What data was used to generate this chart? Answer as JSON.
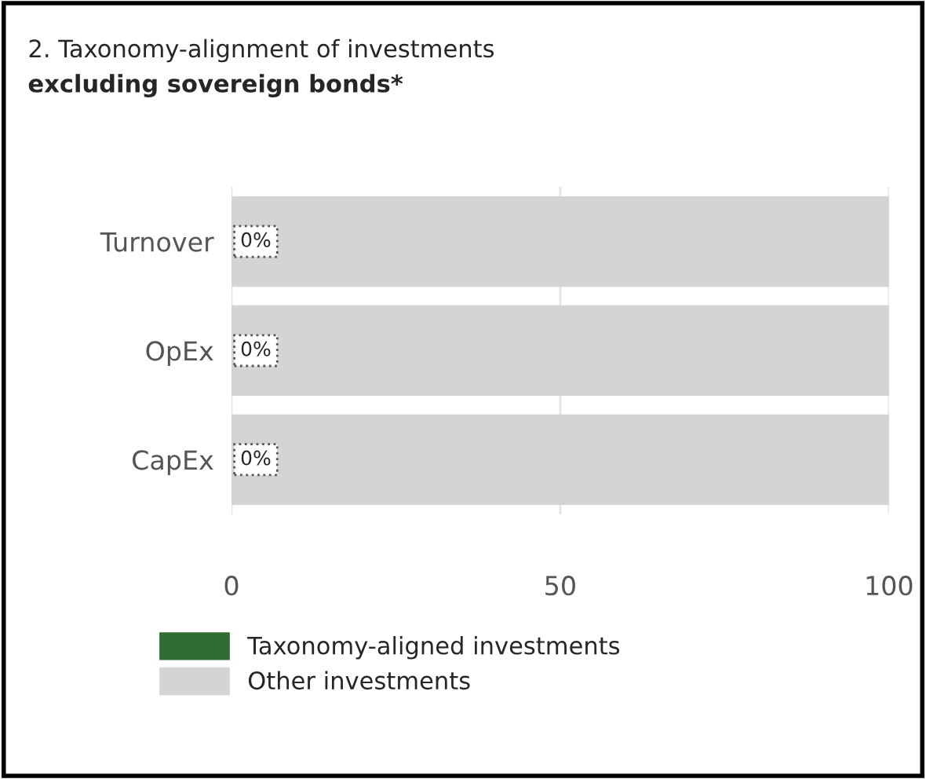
{
  "chart_data": {
    "type": "bar",
    "orientation": "horizontal",
    "title": "2. Taxonomy-alignment of investments",
    "subtitle": "excluding sovereign bonds*",
    "categories": [
      "Turnover",
      "OpEx",
      "CapEx"
    ],
    "series": [
      {
        "name": "Taxonomy-aligned investments",
        "color": "#2e6b30",
        "values": [
          0,
          0,
          0
        ],
        "value_labels": [
          "0%",
          "0%",
          "0%"
        ]
      },
      {
        "name": "Other investments",
        "color": "#d4d4d4",
        "values": [
          100,
          100,
          100
        ]
      }
    ],
    "xlim": [
      0,
      100
    ],
    "xticks": [
      0,
      50,
      100
    ],
    "grid": "x",
    "legend": "bottom"
  }
}
